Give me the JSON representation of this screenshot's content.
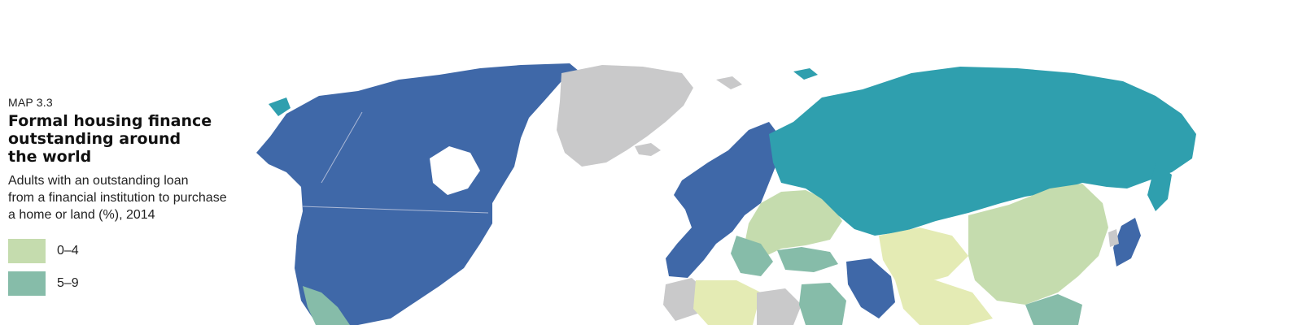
{
  "map": {
    "kicker": "MAP 3.3",
    "title_lines": [
      "Formal housing finance",
      "outstanding around",
      "the world"
    ],
    "subtitle_lines": [
      "Adults with an outstanding loan",
      "from a financial institution to purchase",
      "a home or land (%), 2014"
    ]
  },
  "legend": [
    {
      "label": "0–4",
      "color": "#c5dcae"
    },
    {
      "label": "5–9",
      "color": "#86bca9"
    }
  ],
  "colors": {
    "no_data": "#c9c9ca",
    "cat_0_4": "#c5dcae",
    "cat_5_9": "#86bca9",
    "cat_10_19": "#2f9fae",
    "cat_20_plus": "#3f68a8",
    "light_yellow": "#e4ebb4"
  }
}
